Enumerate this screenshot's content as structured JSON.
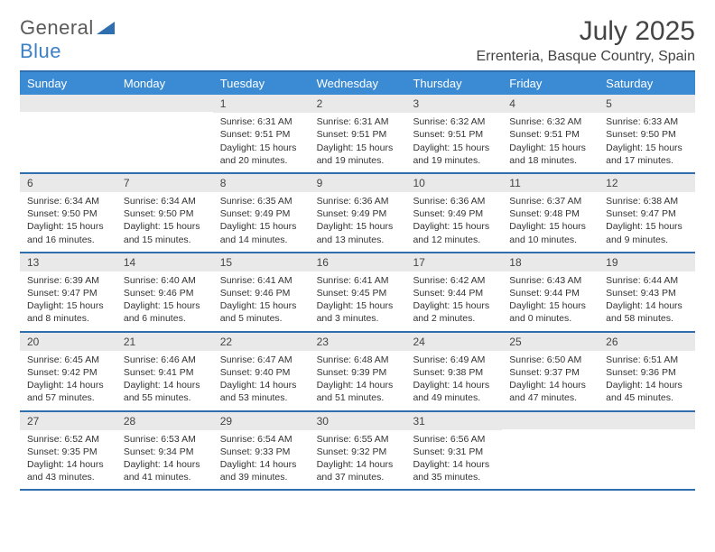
{
  "brand": {
    "part1": "General",
    "part2": "Blue"
  },
  "title": "July 2025",
  "location": "Errenteria, Basque Country, Spain",
  "colors": {
    "header_bg": "#3b8bd4",
    "header_text": "#ffffff",
    "border": "#2f6faf",
    "daynum_bg": "#e9e9e9",
    "body_text": "#333333",
    "logo_gray": "#5a5a5a",
    "logo_blue": "#3b7fc4",
    "page_bg": "#ffffff"
  },
  "day_headers": [
    "Sunday",
    "Monday",
    "Tuesday",
    "Wednesday",
    "Thursday",
    "Friday",
    "Saturday"
  ],
  "labels": {
    "sunrise": "Sunrise:",
    "sunset": "Sunset:",
    "daylight": "Daylight:"
  },
  "weeks": [
    [
      null,
      null,
      {
        "n": "1",
        "sr": "6:31 AM",
        "ss": "9:51 PM",
        "dl": "15 hours and 20 minutes."
      },
      {
        "n": "2",
        "sr": "6:31 AM",
        "ss": "9:51 PM",
        "dl": "15 hours and 19 minutes."
      },
      {
        "n": "3",
        "sr": "6:32 AM",
        "ss": "9:51 PM",
        "dl": "15 hours and 19 minutes."
      },
      {
        "n": "4",
        "sr": "6:32 AM",
        "ss": "9:51 PM",
        "dl": "15 hours and 18 minutes."
      },
      {
        "n": "5",
        "sr": "6:33 AM",
        "ss": "9:50 PM",
        "dl": "15 hours and 17 minutes."
      }
    ],
    [
      {
        "n": "6",
        "sr": "6:34 AM",
        "ss": "9:50 PM",
        "dl": "15 hours and 16 minutes."
      },
      {
        "n": "7",
        "sr": "6:34 AM",
        "ss": "9:50 PM",
        "dl": "15 hours and 15 minutes."
      },
      {
        "n": "8",
        "sr": "6:35 AM",
        "ss": "9:49 PM",
        "dl": "15 hours and 14 minutes."
      },
      {
        "n": "9",
        "sr": "6:36 AM",
        "ss": "9:49 PM",
        "dl": "15 hours and 13 minutes."
      },
      {
        "n": "10",
        "sr": "6:36 AM",
        "ss": "9:49 PM",
        "dl": "15 hours and 12 minutes."
      },
      {
        "n": "11",
        "sr": "6:37 AM",
        "ss": "9:48 PM",
        "dl": "15 hours and 10 minutes."
      },
      {
        "n": "12",
        "sr": "6:38 AM",
        "ss": "9:47 PM",
        "dl": "15 hours and 9 minutes."
      }
    ],
    [
      {
        "n": "13",
        "sr": "6:39 AM",
        "ss": "9:47 PM",
        "dl": "15 hours and 8 minutes."
      },
      {
        "n": "14",
        "sr": "6:40 AM",
        "ss": "9:46 PM",
        "dl": "15 hours and 6 minutes."
      },
      {
        "n": "15",
        "sr": "6:41 AM",
        "ss": "9:46 PM",
        "dl": "15 hours and 5 minutes."
      },
      {
        "n": "16",
        "sr": "6:41 AM",
        "ss": "9:45 PM",
        "dl": "15 hours and 3 minutes."
      },
      {
        "n": "17",
        "sr": "6:42 AM",
        "ss": "9:44 PM",
        "dl": "15 hours and 2 minutes."
      },
      {
        "n": "18",
        "sr": "6:43 AM",
        "ss": "9:44 PM",
        "dl": "15 hours and 0 minutes."
      },
      {
        "n": "19",
        "sr": "6:44 AM",
        "ss": "9:43 PM",
        "dl": "14 hours and 58 minutes."
      }
    ],
    [
      {
        "n": "20",
        "sr": "6:45 AM",
        "ss": "9:42 PM",
        "dl": "14 hours and 57 minutes."
      },
      {
        "n": "21",
        "sr": "6:46 AM",
        "ss": "9:41 PM",
        "dl": "14 hours and 55 minutes."
      },
      {
        "n": "22",
        "sr": "6:47 AM",
        "ss": "9:40 PM",
        "dl": "14 hours and 53 minutes."
      },
      {
        "n": "23",
        "sr": "6:48 AM",
        "ss": "9:39 PM",
        "dl": "14 hours and 51 minutes."
      },
      {
        "n": "24",
        "sr": "6:49 AM",
        "ss": "9:38 PM",
        "dl": "14 hours and 49 minutes."
      },
      {
        "n": "25",
        "sr": "6:50 AM",
        "ss": "9:37 PM",
        "dl": "14 hours and 47 minutes."
      },
      {
        "n": "26",
        "sr": "6:51 AM",
        "ss": "9:36 PM",
        "dl": "14 hours and 45 minutes."
      }
    ],
    [
      {
        "n": "27",
        "sr": "6:52 AM",
        "ss": "9:35 PM",
        "dl": "14 hours and 43 minutes."
      },
      {
        "n": "28",
        "sr": "6:53 AM",
        "ss": "9:34 PM",
        "dl": "14 hours and 41 minutes."
      },
      {
        "n": "29",
        "sr": "6:54 AM",
        "ss": "9:33 PM",
        "dl": "14 hours and 39 minutes."
      },
      {
        "n": "30",
        "sr": "6:55 AM",
        "ss": "9:32 PM",
        "dl": "14 hours and 37 minutes."
      },
      {
        "n": "31",
        "sr": "6:56 AM",
        "ss": "9:31 PM",
        "dl": "14 hours and 35 minutes."
      },
      null,
      null
    ]
  ]
}
